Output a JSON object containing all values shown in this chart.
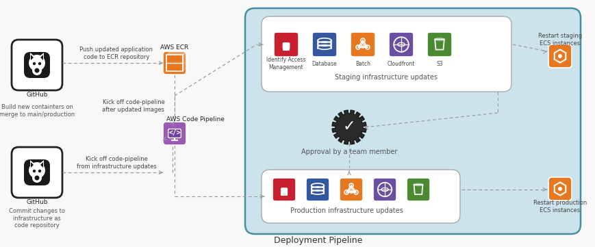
{
  "title": "Deployment Pipeline",
  "bg_color": "#f8f8f8",
  "pipeline_box_color": "#cce3ec",
  "pipeline_box_edge": "#4a8fa0",
  "staging_box_color": "#ffffff",
  "prod_box_color": "#ffffff",
  "github_box_edge": "#1a1a1a",
  "ecr_color": "#e87820",
  "pipeline_icon_color": "#9b59b6",
  "iam_color": "#c8202e",
  "db_color": "#3557a0",
  "batch_color": "#e87820",
  "cloudfront_color": "#6b4fa0",
  "s3_color": "#4a8a30",
  "ecs_color": "#e87820",
  "dashed_color": "#999999",
  "text_dark": "#222222",
  "text_mid": "#444444",
  "text_light": "#666666",
  "labels": {
    "build_new": "Build new containters on\nmerge to main/production",
    "push_ecr": "Push updated application\ncode to ECR repository",
    "kickoff_pipeline": "Kick off code-pipeline\nafter updated images",
    "kickoff_infra": "Kick off code-pipeline\nfrom infrastructure updates",
    "commit_infra": "Commit changes to\ninfrastructure as\ncode repository",
    "staging_infra": "Staging infrastructure updates",
    "approval": "Approval by a team member",
    "prod_infra": "Production infrastructure updates",
    "restart_staging": "Restart staging\nECS instances",
    "restart_prod": "Restart production\nECS instances",
    "aws_ecr": "AWS ECR",
    "aws_pipeline": "AWS Code Pipeline",
    "github": "GitHub"
  },
  "staging_icons": [
    {
      "label": "Identify Access\nManagement",
      "color": "#c8202e"
    },
    {
      "label": "Database",
      "color": "#3557a0"
    },
    {
      "label": "Batch",
      "color": "#e87820"
    },
    {
      "label": "Cloudfront",
      "color": "#6b4fa0"
    },
    {
      "label": "S3",
      "color": "#4a8a30"
    }
  ],
  "prod_icons": [
    {
      "color": "#c8202e"
    },
    {
      "color": "#3557a0"
    },
    {
      "color": "#e87820"
    },
    {
      "color": "#6b4fa0"
    },
    {
      "color": "#4a8a30"
    }
  ]
}
